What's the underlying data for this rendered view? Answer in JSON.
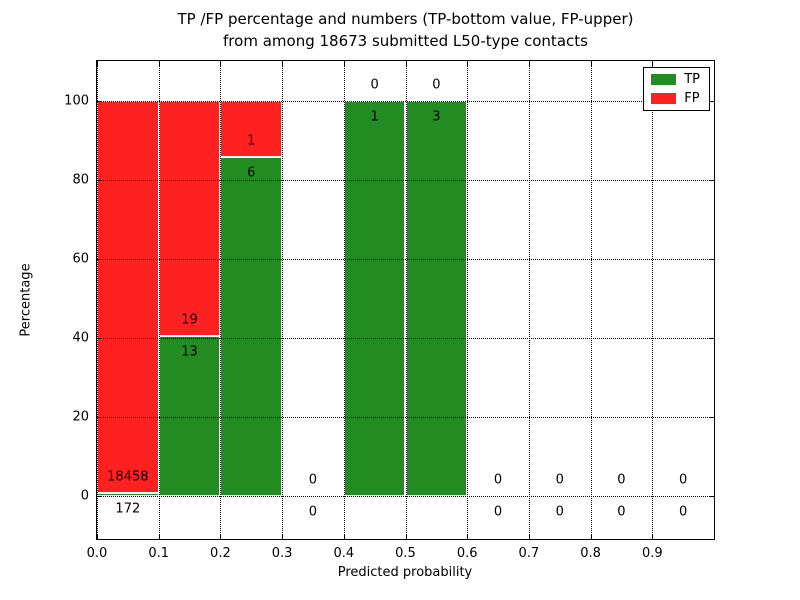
{
  "chart_data": {
    "type": "bar",
    "stacked": true,
    "title_line1": "TP /FP percentage and numbers (TP-bottom value, FP-upper)",
    "title_line2": "from among 18673 submitted L50-type contacts",
    "xlabel": "Predicted probability",
    "ylabel": "Percentage",
    "total_submitted_contacts": 18673,
    "xlim": [
      0.0,
      1.0
    ],
    "ylim": [
      -10.8,
      110.1
    ],
    "xticks": [
      {
        "value": 0.0,
        "label": "0.0"
      },
      {
        "value": 0.1,
        "label": "0.1"
      },
      {
        "value": 0.2,
        "label": "0.2"
      },
      {
        "value": 0.3,
        "label": "0.3"
      },
      {
        "value": 0.4,
        "label": "0.4"
      },
      {
        "value": 0.5,
        "label": "0.5"
      },
      {
        "value": 0.6,
        "label": "0.6"
      },
      {
        "value": 0.7,
        "label": "0.7"
      },
      {
        "value": 0.8,
        "label": "0.8"
      },
      {
        "value": 0.9,
        "label": "0.9"
      }
    ],
    "yticks": [
      {
        "value": 0,
        "label": "0"
      },
      {
        "value": 20,
        "label": "20"
      },
      {
        "value": 40,
        "label": "40"
      },
      {
        "value": 60,
        "label": "60"
      },
      {
        "value": 80,
        "label": "80"
      },
      {
        "value": 100,
        "label": "100"
      }
    ],
    "grid": {
      "style": "dotted",
      "above_bars": true
    },
    "legend": {
      "position": "upper-right",
      "entries": [
        {
          "label": "TP",
          "color": "#228B22"
        },
        {
          "label": "FP",
          "color": "#FF2020"
        }
      ]
    },
    "bins": [
      {
        "range": [
          0.0,
          0.1
        ],
        "tp": 172,
        "fp": 18458,
        "tp_pct": 0.92,
        "fp_pct": 99.08
      },
      {
        "range": [
          0.1,
          0.2
        ],
        "tp": 13,
        "fp": 19,
        "tp_pct": 40.63,
        "fp_pct": 59.37
      },
      {
        "range": [
          0.2,
          0.3
        ],
        "tp": 6,
        "fp": 1,
        "tp_pct": 85.71,
        "fp_pct": 14.29
      },
      {
        "range": [
          0.3,
          0.4
        ],
        "tp": 0,
        "fp": 0,
        "tp_pct": 0,
        "fp_pct": 0
      },
      {
        "range": [
          0.4,
          0.5
        ],
        "tp": 1,
        "fp": 0,
        "tp_pct": 100,
        "fp_pct": 0
      },
      {
        "range": [
          0.5,
          0.6
        ],
        "tp": 3,
        "fp": 0,
        "tp_pct": 100,
        "fp_pct": 0
      },
      {
        "range": [
          0.6,
          0.7
        ],
        "tp": 0,
        "fp": 0,
        "tp_pct": 0,
        "fp_pct": 0
      },
      {
        "range": [
          0.7,
          0.8
        ],
        "tp": 0,
        "fp": 0,
        "tp_pct": 0,
        "fp_pct": 0
      },
      {
        "range": [
          0.8,
          0.9
        ],
        "tp": 0,
        "fp": 0,
        "tp_pct": 0,
        "fp_pct": 0
      },
      {
        "range": [
          0.9,
          1.0
        ],
        "tp": 0,
        "fp": 0,
        "tp_pct": 0,
        "fp_pct": 0
      }
    ],
    "colors": {
      "tp": "#228B22",
      "fp": "#FF2020",
      "bar_edge": "#FFFFFF",
      "grid": "#000000",
      "text": "#000000",
      "background": "#FFFFFF"
    }
  }
}
